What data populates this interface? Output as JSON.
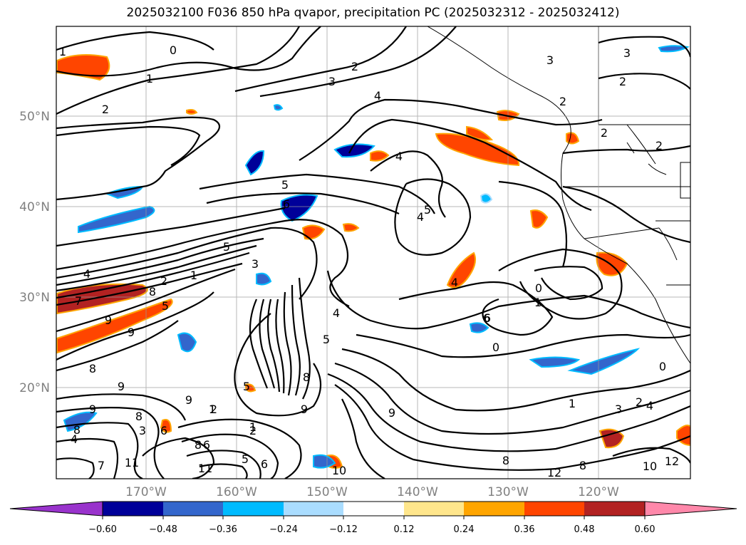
{
  "title": "2025032100 F036 850 hPa qvapor, precipitation PC (2025032312 - 2025032412)",
  "lat_labels": [
    "50°N",
    "40°N",
    "30°N",
    "20°N"
  ],
  "lon_labels": [
    "170°W",
    "160°W",
    "150°W",
    "140°W",
    "130°W",
    "120°W"
  ],
  "colorbar": {
    "ticks": [
      "−0.60",
      "−0.48",
      "−0.36",
      "−0.24",
      "−0.12",
      "0.12",
      "0.24",
      "0.36",
      "0.48",
      "0.60"
    ],
    "colors": [
      "#9933cc",
      "#000099",
      "#3366cc",
      "#00bbff",
      "#aaddff",
      "#ffffff",
      "#ffe68c",
      "#ffa500",
      "#ff4500",
      "#b22222",
      "#ff88aa"
    ]
  },
  "contour_labels": [
    "1",
    "0",
    "1",
    "2",
    "2",
    "3",
    "4",
    "3",
    "2",
    "2",
    "3",
    "2",
    "2",
    "4",
    "5",
    "4",
    "5",
    "6",
    "5",
    "4",
    "2",
    "1",
    "7",
    "8",
    "5",
    "9",
    "9",
    "8",
    "9",
    "9",
    "5",
    "3",
    "4",
    "5",
    "6",
    "0",
    "1",
    "4",
    "0",
    "1",
    "8",
    "9",
    "8",
    "8",
    "3",
    "2",
    "8",
    "7",
    "6",
    "5",
    "1",
    "2",
    "4",
    "0",
    "1",
    "2",
    "3",
    "4",
    "11",
    "9",
    "6",
    "10",
    "8",
    "12",
    "10",
    "12",
    "11",
    "9",
    "8",
    "6",
    "6",
    "5"
  ]
}
